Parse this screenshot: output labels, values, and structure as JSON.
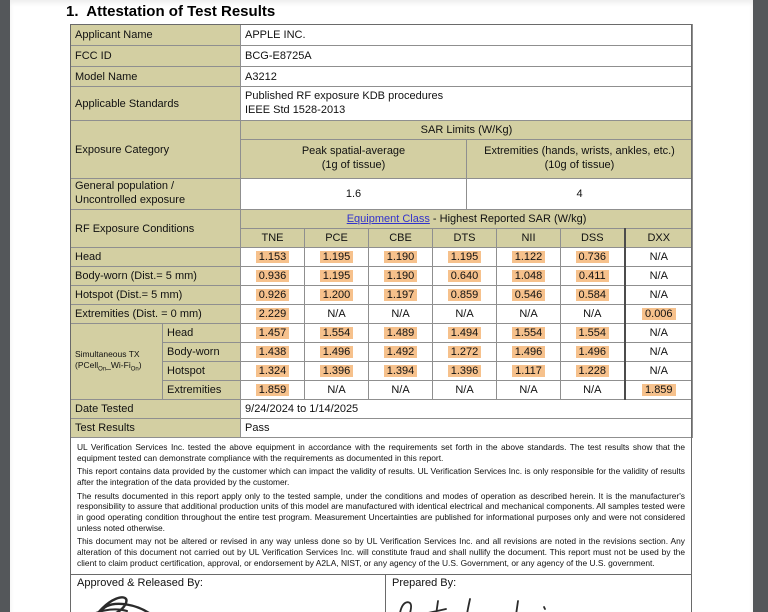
{
  "page": {
    "title": "1.  Attestation of Test Results"
  },
  "colors": {
    "label_bg": "#d3cfa2",
    "highlight": "#f6c18c",
    "link_blue": "#3333cc"
  },
  "info": {
    "rows": [
      {
        "label": "Applicant Name",
        "value": "APPLE INC."
      },
      {
        "label": "FCC ID",
        "value": "BCG-E8725A"
      },
      {
        "label": "Model Name",
        "value": "A3212"
      },
      {
        "label": "Applicable Standards",
        "value_line1": "Published RF exposure KDB procedures",
        "value_line2": "IEEE Std 1528-2013"
      }
    ]
  },
  "exposure": {
    "label": "Exposure Category",
    "sar_limits_header": "SAR Limits (W/Kg)",
    "peak_header_line1": "Peak spatial-average",
    "peak_header_line2": "(1g of tissue)",
    "ext_header_line1": "Extremities (hands, wrists, ankles, etc.)",
    "ext_header_line2": "(10g of tissue)",
    "row_label_line1": "General population /",
    "row_label_line2": "Uncontrolled exposure",
    "peak_value": "1.6",
    "ext_value": "4"
  },
  "rf": {
    "label": "RF Exposure Conditions",
    "header_link": "Equipment Class",
    "header_rest": " - Highest Reported SAR (W/kg)",
    "columns": [
      "TNE",
      "PCE",
      "CBE",
      "DTS",
      "NII",
      "DSS",
      "DXX"
    ],
    "rows": [
      {
        "label": "Head",
        "values": [
          "1.153",
          "1.195",
          "1.190",
          "1.195",
          "1.122",
          "0.736",
          "N/A"
        ]
      },
      {
        "label": "Body-worn (Dist.= 5 mm)",
        "values": [
          "0.936",
          "1.195",
          "1.190",
          "0.640",
          "1.048",
          "0.411",
          "N/A"
        ]
      },
      {
        "label": "Hotspot (Dist.= 5 mm)",
        "values": [
          "0.926",
          "1.200",
          "1.197",
          "0.859",
          "0.546",
          "0.584",
          "N/A"
        ]
      },
      {
        "label": "Extremities (Dist. = 0 mm)",
        "values": [
          "2.229",
          "N/A",
          "N/A",
          "N/A",
          "N/A",
          "N/A",
          "0.006"
        ]
      }
    ]
  },
  "simultaneous": {
    "label_line1": "Simultaneous TX",
    "label_prefix": "(PCell",
    "label_sub1": "On",
    "label_mid": "_Wi-Fi",
    "label_sub2": "On",
    "label_suffix": ")",
    "rows": [
      {
        "label": "Head",
        "values": [
          "1.457",
          "1.554",
          "1.489",
          "1.494",
          "1.554",
          "1.554",
          "N/A"
        ]
      },
      {
        "label": "Body-worn",
        "values": [
          "1.438",
          "1.496",
          "1.492",
          "1.272",
          "1.496",
          "1.496",
          "N/A"
        ]
      },
      {
        "label": "Hotspot",
        "values": [
          "1.324",
          "1.396",
          "1.394",
          "1.396",
          "1.117",
          "1.228",
          "N/A"
        ]
      },
      {
        "label": "Extremities",
        "values": [
          "1.859",
          "N/A",
          "N/A",
          "N/A",
          "N/A",
          "N/A",
          "1.859"
        ]
      }
    ]
  },
  "summary": {
    "date_tested_label": "Date Tested",
    "date_tested_value": "9/24/2024 to 1/14/2025",
    "test_results_label": "Test Results",
    "test_results_value": "Pass"
  },
  "disclaimers": [
    "UL Verification Services Inc. tested the above equipment in accordance with the requirements set forth in the above standards. The test results show that the equipment tested can demonstrate compliance with the requirements as documented in this report.",
    "This report contains data provided by the customer which can impact the validity of results. UL Verification Services Inc. is only responsible for the validity of results after the integration of the data provided by the customer.",
    "The results documented in this report apply only to the tested sample, under the conditions and modes of operation as described herein. It is the manufacturer's responsibility to assure that additional production units of this model are manufactured with identical electrical and mechanical components. All samples tested were in good operating condition throughout the entire test program. Measurement Uncertainties are published for informational purposes only and were not considered unless noted otherwise.",
    "This document may not be altered or revised in any way unless done so by UL Verification Services Inc. and all revisions are noted in the revisions section.  Any alteration of this document not carried out by UL Verification Services Inc. will constitute fraud and shall nullify the document.  This report must not be used by the client to claim product certification, approval, or endorsement by A2LA, NIST, or any agency of the U.S. Government, or any agency of the U.S. government."
  ],
  "footer": {
    "approved_label": "Approved & Released By:",
    "prepared_label": "Prepared By:"
  }
}
